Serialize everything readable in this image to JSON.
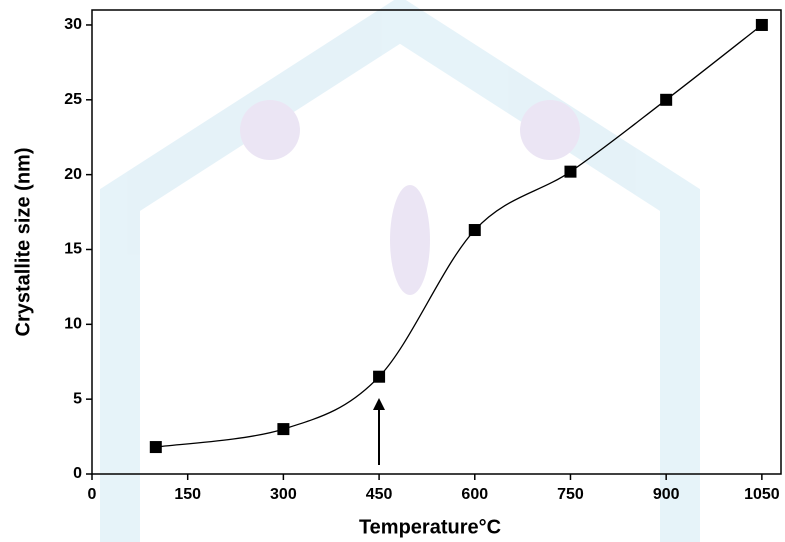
{
  "chart_data": {
    "type": "line",
    "x_label": "Temperature°C",
    "y_label": "Crystallite size (nm)",
    "x": [
      100,
      300,
      450,
      600,
      750,
      900,
      1050
    ],
    "values": [
      1.8,
      3.0,
      6.5,
      16.3,
      20.2,
      25.0,
      30.0
    ],
    "color": "#000000",
    "xlim": [
      0,
      1080
    ],
    "ylim": [
      0,
      31
    ],
    "xticks": [
      0,
      150,
      300,
      450,
      600,
      750,
      900,
      1050
    ],
    "yticks": [
      0,
      5,
      10,
      15,
      20,
      25,
      30
    ]
  }
}
